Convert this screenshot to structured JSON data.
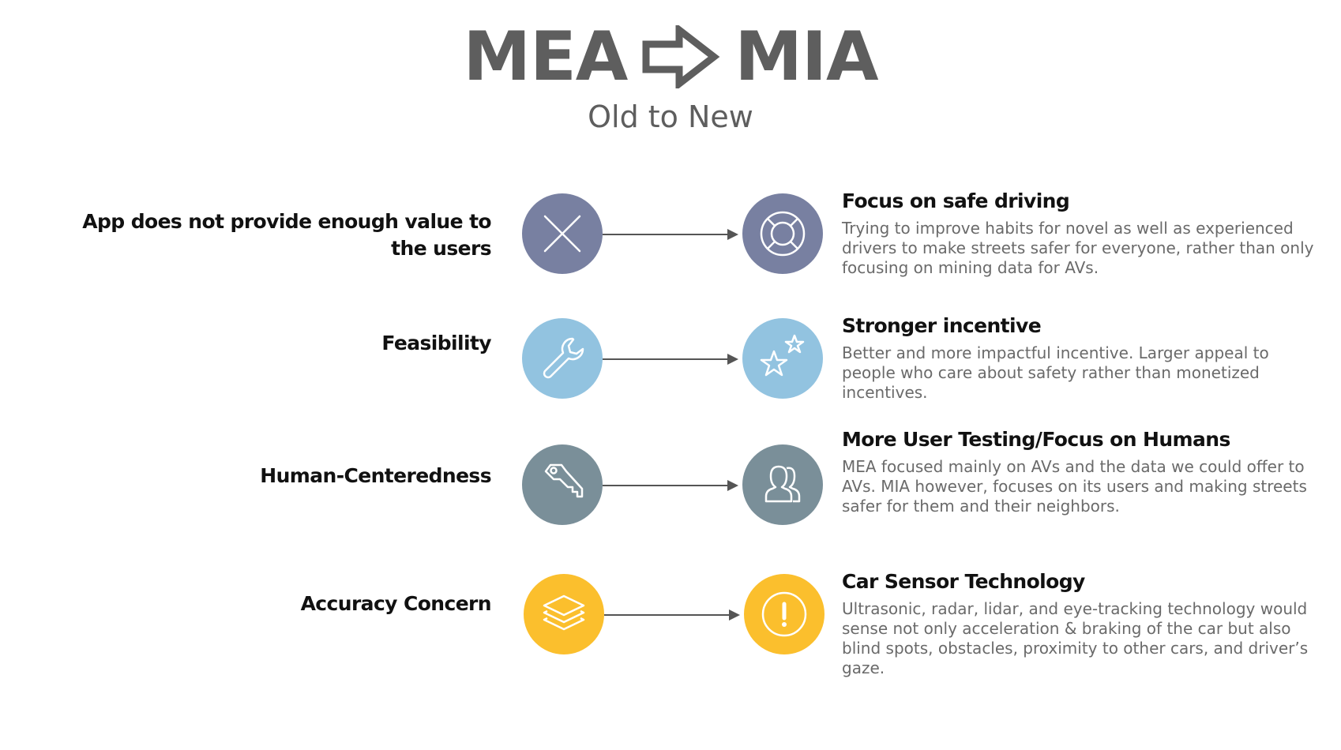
{
  "header": {
    "title_left": "MEA",
    "title_right": "MIA",
    "subtitle": "Old to New"
  },
  "rows": [
    {
      "old_label": "App does not provide enough value to the users",
      "old_icon": "close-x-icon",
      "new_icon": "lifebuoy-icon",
      "new_title": "Focus on safe driving",
      "new_description": "Trying to improve habits for novel as well as experienced drivers to make streets safer for everyone, rather than only focusing on mining data for AVs.",
      "color": "#7880a1"
    },
    {
      "old_label": "Feasibility",
      "old_icon": "wrench-icon",
      "new_icon": "stars-icon",
      "new_title": "Stronger incentive",
      "new_description": "Better and more impactful incentive. Larger appeal to people who care about safety rather than monetized incentives.",
      "color": "#92c3e0"
    },
    {
      "old_label": "Human-Centeredness",
      "old_icon": "key-icon",
      "new_icon": "users-icon",
      "new_title": "More User Testing/Focus  on Humans",
      "new_description": "MEA focused mainly on AVs and the data we could offer to AVs. MIA however, focuses on its users and making streets safer for them and their neighbors.",
      "color": "#7a8f99"
    },
    {
      "old_label": "Accuracy Concern",
      "old_icon": "layers-icon",
      "new_icon": "exclamation-icon",
      "new_title": "Car Sensor Technology",
      "new_description": "Ultrasonic, radar, lidar, and eye-tracking technology would sense not only acceleration & braking of the car but also blind spots, obstacles, proximity to other cars, and driver’s gaze.",
      "color": "#fbbf2d"
    }
  ]
}
